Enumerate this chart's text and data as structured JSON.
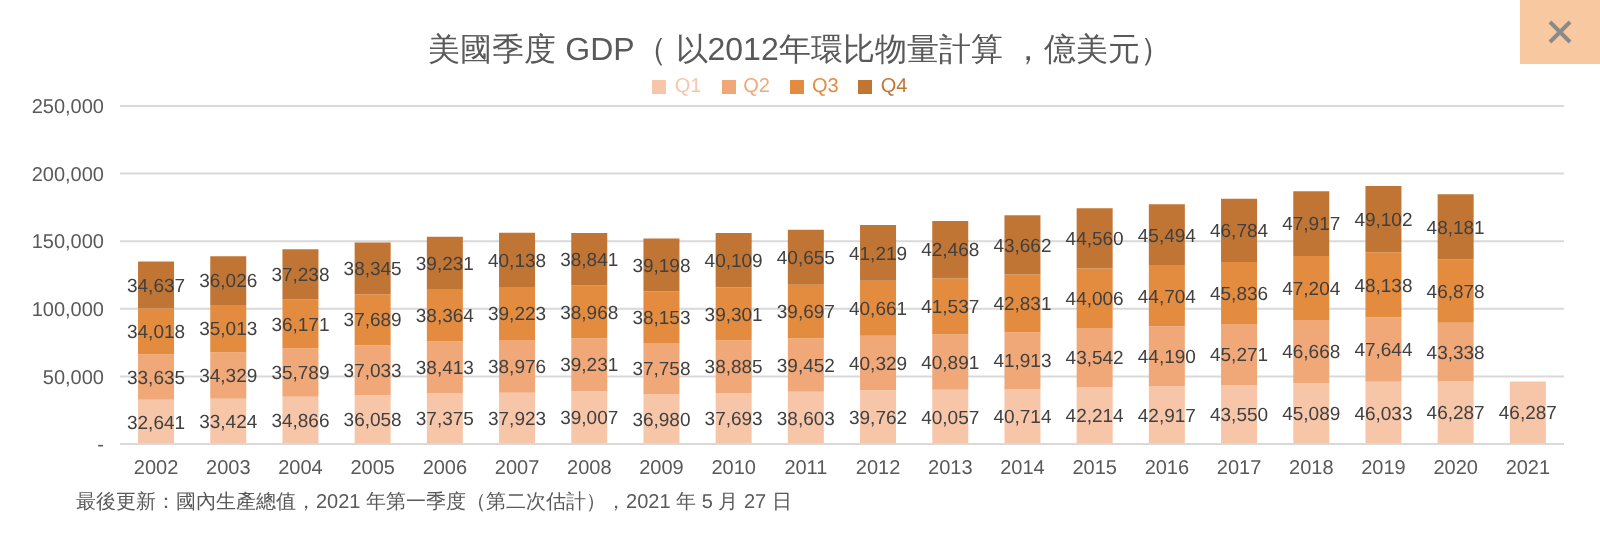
{
  "chart_data": {
    "type": "bar",
    "title": "美國季度 GDP（ 以2012年環比物量計算 ，億美元）",
    "stacked": true,
    "categories": [
      "2002",
      "2003",
      "2004",
      "2005",
      "2006",
      "2007",
      "2008",
      "2009",
      "2010",
      "2011",
      "2012",
      "2013",
      "2014",
      "2015",
      "2016",
      "2017",
      "2018",
      "2019",
      "2020",
      "2021"
    ],
    "series": [
      {
        "name": "Q1",
        "color": "#f7c6a8",
        "values": [
          32641,
          33424,
          34866,
          36058,
          37375,
          37923,
          39007,
          36980,
          37693,
          38603,
          39762,
          40057,
          40714,
          42214,
          42917,
          43550,
          45089,
          46033,
          46287,
          46287
        ],
        "value_labels": [
          "32,641",
          "33,424",
          "34,866",
          "36,058",
          "37,375",
          "37,923",
          "39,007",
          "36,980",
          "37,693",
          "38,603",
          "39,762",
          "40,057",
          "40,714",
          "42,214",
          "42,917",
          "43,550",
          "45,089",
          "46,033",
          "46,287",
          "46,287"
        ]
      },
      {
        "name": "Q2",
        "color": "#f0a878",
        "values": [
          33635,
          34329,
          35789,
          37033,
          38413,
          38976,
          39231,
          37758,
          38885,
          39452,
          40329,
          40891,
          41913,
          43542,
          44190,
          45271,
          46668,
          47644,
          43338,
          null
        ],
        "value_labels": [
          "33,635",
          "34,329",
          "35,789",
          "37,033",
          "38,413",
          "38,976",
          "39,231",
          "37,758",
          "38,885",
          "39,452",
          "40,329",
          "40,891",
          "41,913",
          "43,542",
          "44,190",
          "45,271",
          "46,668",
          "47,644",
          "43,338",
          null
        ]
      },
      {
        "name": "Q3",
        "color": "#e38b3f",
        "values": [
          34018,
          35013,
          36171,
          37689,
          38364,
          39223,
          38968,
          38153,
          39301,
          39697,
          40661,
          41537,
          42831,
          44006,
          44704,
          45836,
          47204,
          48138,
          46878,
          null
        ],
        "value_labels": [
          "34,018",
          "35,013",
          "36,171",
          "37,689",
          "38,364",
          "39,223",
          "38,968",
          "38,153",
          "39,301",
          "39,697",
          "40,661",
          "41,537",
          "42,831",
          "44,006",
          "44,704",
          "45,836",
          "47,204",
          "48,138",
          "46,878",
          null
        ]
      },
      {
        "name": "Q4",
        "color": "#c07534",
        "values": [
          34637,
          36026,
          37238,
          38345,
          39231,
          40138,
          38841,
          39198,
          40109,
          40655,
          41219,
          42468,
          43662,
          44560,
          45494,
          46784,
          47917,
          49102,
          48181,
          null
        ],
        "value_labels": [
          "34,637",
          "36,026",
          "37,238",
          "38,345",
          "39,231",
          "40,138",
          "38,841",
          "39,198",
          "40,109",
          "40,655",
          "41,219",
          "42,468",
          "43,662",
          "44,560",
          "45,494",
          "46,784",
          "47,917",
          "49,102",
          "48,181",
          null
        ]
      }
    ],
    "ylim": [
      0,
      250000
    ],
    "yticks": [
      {
        "value": 0,
        "label": "-"
      },
      {
        "value": 50000,
        "label": "50,000"
      },
      {
        "value": 100000,
        "label": "100,000"
      },
      {
        "value": 150000,
        "label": "150,000"
      },
      {
        "value": 200000,
        "label": "200,000"
      },
      {
        "value": 250000,
        "label": "250,000"
      }
    ],
    "grid": "y",
    "legend": "top",
    "annotations": [
      "最後更新：國內生產總值，2021 年第一季度（第二次估計），2021 年 5 月 27 日"
    ]
  }
}
